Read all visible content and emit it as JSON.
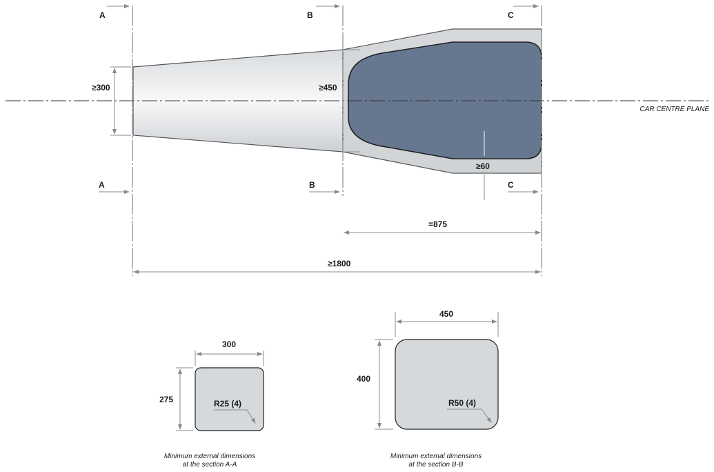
{
  "labels": {
    "section_a": "A",
    "section_b": "B",
    "section_c": "C",
    "car_centre_plane": "CAR CENTRE PLANE",
    "dim_min_300": "≥300",
    "dim_min_450": "≥450",
    "dim_min_60": "≥60",
    "dim_875": "=875",
    "dim_min_1800": "≥1800"
  },
  "section_aa": {
    "width": "300",
    "height": "275",
    "radius": "R25 (4)",
    "caption_line1": "Minimum external dimensions",
    "caption_line2": "at the section A-A"
  },
  "section_bb": {
    "width": "450",
    "height": "400",
    "radius": "R50 (4)",
    "caption_line1": "Minimum external dimensions",
    "caption_line2": "at the section B-B"
  },
  "colors": {
    "structure_fill": "#d6d9dc",
    "inner_panel": "#66778f",
    "outline": "#222222"
  }
}
